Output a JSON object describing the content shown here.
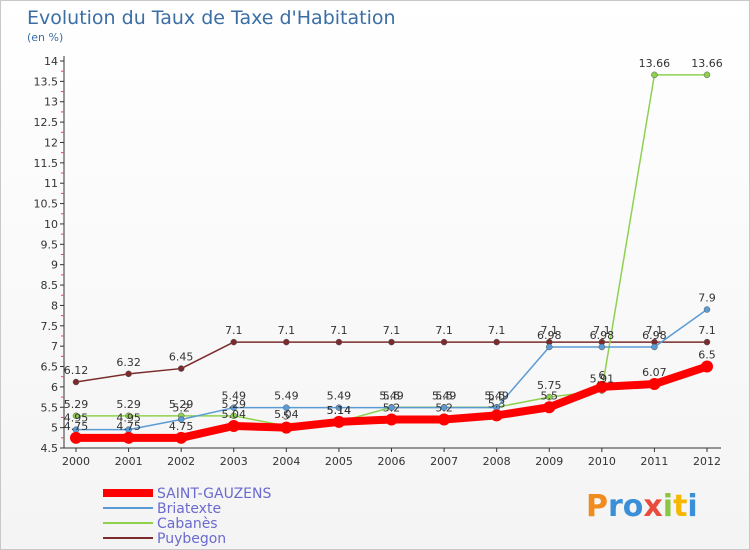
{
  "chart_data": {
    "type": "line",
    "title": "Evolution du Taux de Taxe d'Habitation",
    "subtitle": "(en %)",
    "xlabel": "",
    "ylabel": "",
    "ylim": [
      4.5,
      14
    ],
    "yticks": [
      4.5,
      5,
      5.5,
      6,
      6.5,
      7,
      7.5,
      8,
      8.5,
      9,
      9.5,
      10,
      10.5,
      11,
      11.5,
      12,
      12.5,
      13,
      13.5,
      14
    ],
    "ytick_labels": [
      "4.5",
      "5",
      "5.5",
      "6",
      "6.5",
      "7",
      "7.5",
      "8",
      "8.5",
      "9",
      "9.5",
      "10",
      "10.5",
      "11",
      "11.5",
      "12",
      "12.5",
      "13",
      "13.5",
      "14"
    ],
    "x": [
      "2000",
      "2001",
      "2002",
      "2003",
      "2004",
      "2005",
      "2006",
      "2007",
      "2008",
      "2009",
      "2010",
      "2011",
      "2012"
    ],
    "legend_position": "bottom-left",
    "grid": false,
    "series": [
      {
        "name": "SAINT-GAUZENS",
        "color": "#ff0000",
        "values": [
          4.75,
          4.75,
          4.75,
          5.04,
          5.0,
          5.14,
          5.2,
          5.2,
          5.3,
          5.5,
          6.0,
          6.07,
          6.5
        ],
        "labels": [
          "4.75",
          "4.75",
          "4.75",
          "5.04",
          "5",
          "5.14",
          "5.2",
          "5.2",
          "5.3",
          "5.5",
          "6",
          "6.07",
          "6.5"
        ]
      },
      {
        "name": "Briatexte",
        "color": "#5b9bd5",
        "values": [
          4.95,
          4.95,
          5.2,
          5.49,
          5.49,
          5.49,
          5.49,
          5.49,
          5.49,
          6.98,
          6.98,
          6.98,
          7.9
        ],
        "labels": [
          "4.95",
          "4.95",
          "5.2",
          "5.49",
          "5.49",
          "5.49",
          "5.49",
          "5.49",
          "5.49",
          "6.98",
          "6.98",
          "6.98",
          "7.9"
        ]
      },
      {
        "name": "Cabanès",
        "color": "#8fd14f",
        "values": [
          5.29,
          5.29,
          5.29,
          5.29,
          5.04,
          5.14,
          5.5,
          5.5,
          5.5,
          5.75,
          5.91,
          13.66,
          13.66
        ],
        "labels": [
          "5.29",
          "5.29",
          "5.29",
          "5.29",
          "5.04",
          "5.14",
          "5.5",
          "5.5",
          "5.5",
          "5.75",
          "5.91",
          "13.66",
          "13.66"
        ]
      },
      {
        "name": "Puybegon",
        "color": "#7a2b2b",
        "values": [
          6.12,
          6.32,
          6.45,
          7.1,
          7.1,
          7.1,
          7.1,
          7.1,
          7.1,
          7.1,
          7.1,
          7.1,
          7.1
        ],
        "labels": [
          "6.12",
          "6.32",
          "6.45",
          "7.1",
          "7.1",
          "7.1",
          "7.1",
          "7.1",
          "7.1",
          "7.1",
          "7.1",
          "7.1",
          "7.1"
        ]
      }
    ]
  },
  "logo": {
    "text": "Proxiti"
  }
}
